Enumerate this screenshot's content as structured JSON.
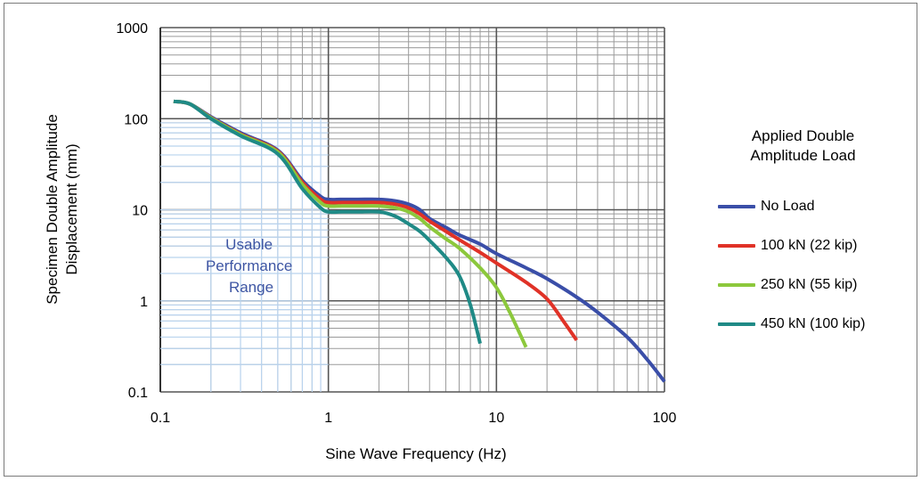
{
  "chart_data": {
    "type": "line",
    "xlabel": "Sine Wave Frequency (Hz)",
    "ylabel": "Specimen Double Amplitude Displacement (mm)",
    "xscale": "log",
    "yscale": "log",
    "xlim": [
      0.1,
      100
    ],
    "ylim": [
      0.1,
      1000
    ],
    "x_ticks": [
      "0.1",
      "1",
      "10",
      "100"
    ],
    "y_ticks": [
      "0.1",
      "1",
      "10",
      "100",
      "1000"
    ],
    "grid": true,
    "legend_title": "Applied Double Amplitude Load",
    "legend_position": "right",
    "annotation": "Usable Performance Range",
    "series": [
      {
        "name": "No Load",
        "color": "#3a4ea8",
        "x": [
          0.12,
          0.15,
          0.2,
          0.3,
          0.5,
          0.7,
          0.9,
          1.0,
          1.2,
          1.5,
          2.0,
          2.5,
          3.0,
          3.5,
          4,
          5,
          6,
          8,
          10,
          15,
          20,
          30,
          40,
          60,
          80,
          100
        ],
        "y": [
          155,
          145,
          105,
          70,
          45,
          21,
          14,
          13,
          13,
          13,
          13,
          12.5,
          11.5,
          10,
          8,
          6.4,
          5.3,
          4.2,
          3.3,
          2.3,
          1.75,
          1.1,
          0.75,
          0.4,
          0.22,
          0.13
        ]
      },
      {
        "name": "100 kN (22 kip)",
        "color": "#e03227",
        "x": [
          0.12,
          0.15,
          0.2,
          0.3,
          0.5,
          0.7,
          0.9,
          1.0,
          1.2,
          1.5,
          2.0,
          2.5,
          3.0,
          3.5,
          4,
          5,
          6,
          8,
          10,
          15,
          20,
          25,
          30
        ],
        "y": [
          155,
          145,
          103,
          68,
          44,
          20,
          13,
          12,
          12,
          12,
          12,
          11.5,
          10.5,
          9,
          7.5,
          5.8,
          4.7,
          3.4,
          2.6,
          1.6,
          1.05,
          0.6,
          0.37
        ]
      },
      {
        "name": "250 kN (55 kip)",
        "color": "#8cc83c",
        "x": [
          0.12,
          0.15,
          0.2,
          0.3,
          0.5,
          0.7,
          0.9,
          1.0,
          1.2,
          1.5,
          2.0,
          2.5,
          3.0,
          3.5,
          4,
          5,
          6,
          8,
          10,
          12,
          15
        ],
        "y": [
          155,
          145,
          102,
          67,
          43,
          19,
          12,
          11,
          11,
          11,
          11,
          10.5,
          9.5,
          8,
          6.5,
          4.8,
          3.8,
          2.3,
          1.4,
          0.75,
          0.31
        ]
      },
      {
        "name": "450 kN (100 kip)",
        "color": "#1f8a86",
        "x": [
          0.12,
          0.15,
          0.2,
          0.3,
          0.5,
          0.7,
          0.9,
          1.0,
          1.2,
          1.5,
          2.0,
          2.5,
          3.0,
          3.5,
          4,
          5,
          6,
          7,
          8
        ],
        "y": [
          155,
          145,
          100,
          65,
          41,
          17,
          10.5,
          9.5,
          9.5,
          9.5,
          9.5,
          8.5,
          7,
          5.8,
          4.6,
          3,
          1.9,
          0.9,
          0.34
        ]
      }
    ]
  }
}
